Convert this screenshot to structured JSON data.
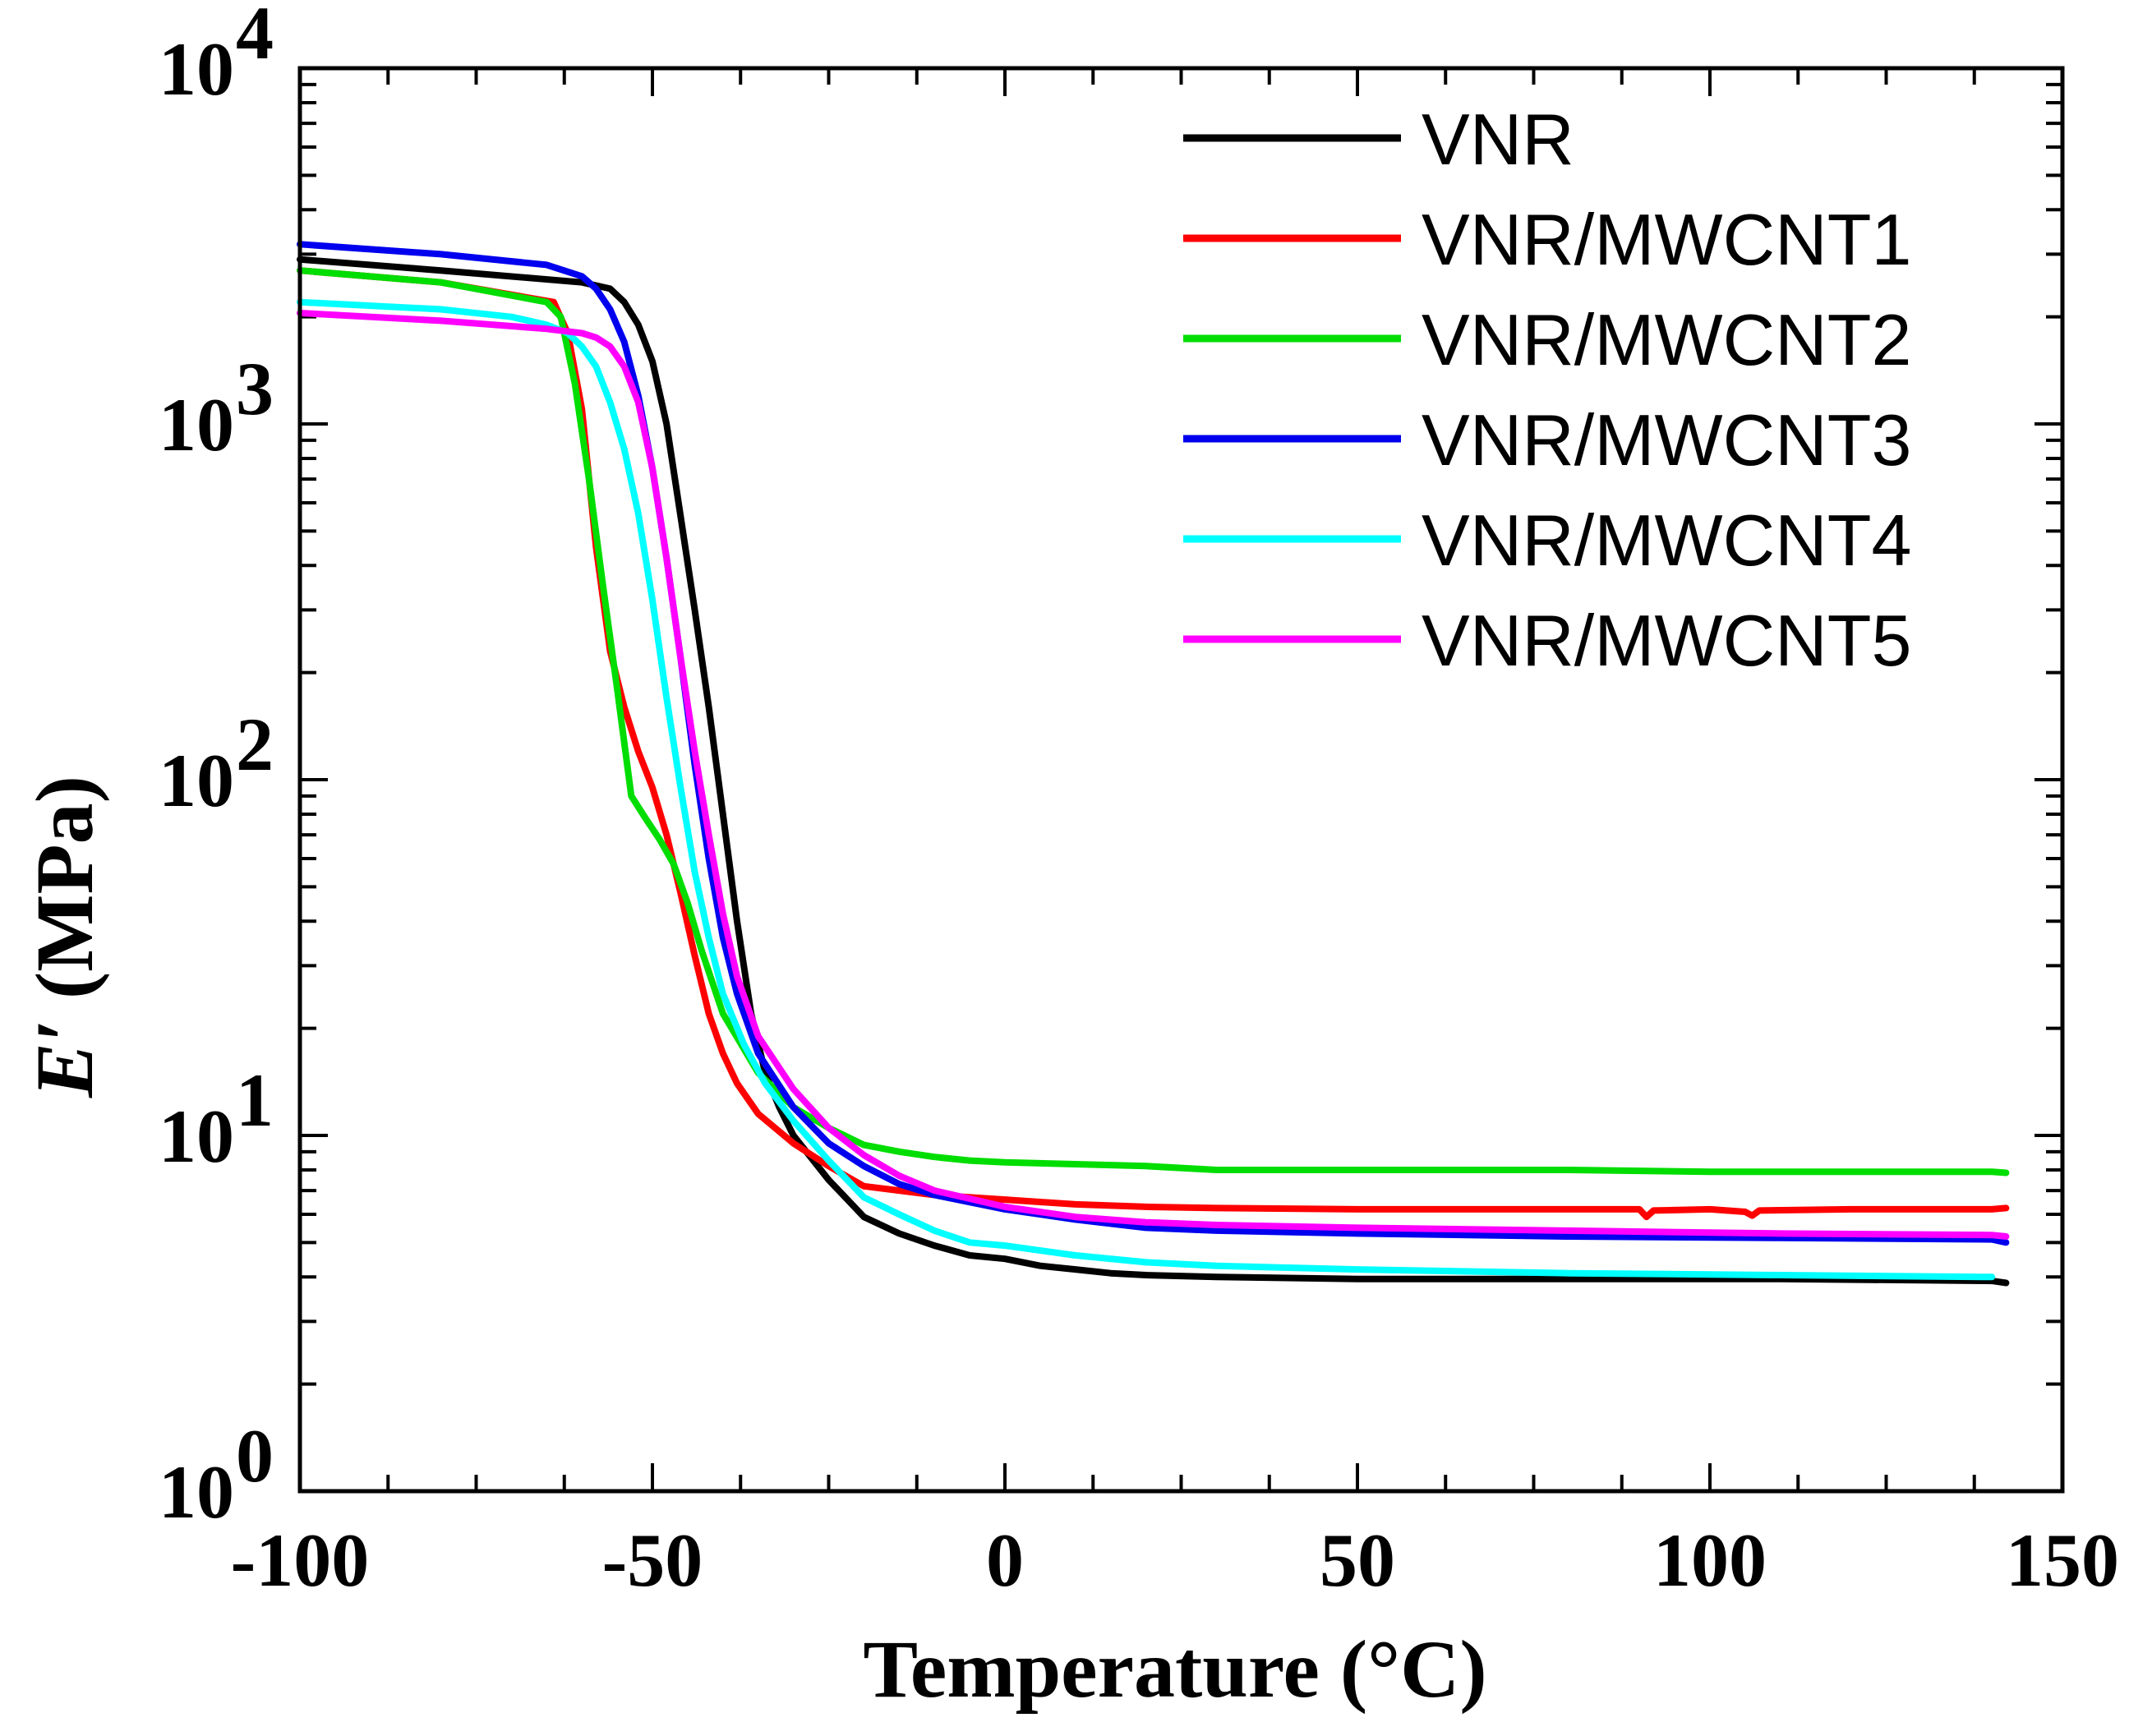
{
  "chart_data": {
    "type": "line",
    "title": "",
    "xlabel": "Temperature (°C)",
    "ylabel": "E′ (MPa)",
    "ylabel_parts": {
      "symbol": "E′",
      "unit": " (MPa)"
    },
    "yscale": "log",
    "xlim": [
      -100,
      150
    ],
    "ylim": [
      1,
      10000
    ],
    "x_major_ticks": [
      -100,
      -50,
      0,
      50,
      100,
      150
    ],
    "x_tick_labels": [
      "-100",
      "-50",
      "0",
      "50",
      "100",
      "150"
    ],
    "y_major_ticks": [
      {
        "value": 1,
        "base": "10",
        "exp": "0"
      },
      {
        "value": 10,
        "base": "10",
        "exp": "1"
      },
      {
        "value": 100,
        "base": "10",
        "exp": "2"
      },
      {
        "value": 1000,
        "base": "10",
        "exp": "3"
      },
      {
        "value": 10000,
        "base": "10",
        "exp": "4"
      }
    ],
    "legend_position": "top-right",
    "series": [
      {
        "name": "VNR",
        "color": "#000000",
        "x": [
          -100,
          -80,
          -60,
          -56,
          -54,
          -52,
          -50,
          -48,
          -46,
          -44,
          -42,
          -40,
          -38,
          -36,
          -34,
          -32,
          -30,
          -25,
          -20,
          -15,
          -10,
          -5,
          0,
          5,
          10,
          15,
          20,
          30,
          50,
          80,
          110,
          140,
          142
        ],
        "y": [
          2900,
          2700,
          2500,
          2400,
          2200,
          1900,
          1500,
          1000,
          550,
          300,
          160,
          80,
          40,
          22,
          15,
          12,
          10,
          7.5,
          5.9,
          5.3,
          4.9,
          4.6,
          4.5,
          4.3,
          4.2,
          4.1,
          4.05,
          4.0,
          3.95,
          3.95,
          3.95,
          3.9,
          3.85
        ]
      },
      {
        "name": "VNR/MWCNT1",
        "color": "#ff0000",
        "x": [
          -100,
          -80,
          -64,
          -62,
          -60,
          -58,
          -56,
          -54,
          -52,
          -50,
          -48,
          -46,
          -44,
          -42,
          -40,
          -38,
          -35,
          -30,
          -25,
          -20,
          -15,
          -10,
          0,
          10,
          20,
          30,
          50,
          80,
          90,
          91,
          92,
          100,
          105,
          106,
          107,
          120,
          140,
          142
        ],
        "y": [
          2700,
          2500,
          2200,
          1800,
          1100,
          450,
          230,
          160,
          120,
          95,
          70,
          48,
          32,
          22,
          17,
          14,
          11.5,
          9.5,
          8.2,
          7.2,
          7.0,
          6.8,
          6.6,
          6.4,
          6.3,
          6.25,
          6.2,
          6.2,
          6.2,
          5.9,
          6.15,
          6.2,
          6.1,
          5.95,
          6.15,
          6.2,
          6.2,
          6.25
        ]
      },
      {
        "name": "VNR/MWCNT2",
        "color": "#00dd00",
        "x": [
          -100,
          -80,
          -65,
          -63,
          -61,
          -59,
          -57,
          -55,
          -53,
          -51,
          -49,
          -47,
          -45,
          -43,
          -40,
          -35,
          -30,
          -25,
          -20,
          -15,
          -10,
          -5,
          0,
          10,
          20,
          30,
          50,
          80,
          100,
          120,
          140,
          142
        ],
        "y": [
          2700,
          2500,
          2200,
          2000,
          1300,
          700,
          350,
          180,
          90,
          78,
          68,
          58,
          45,
          33,
          22,
          15,
          12,
          10.5,
          9.4,
          9.0,
          8.7,
          8.5,
          8.4,
          8.3,
          8.2,
          8.0,
          8.0,
          8.0,
          7.9,
          7.9,
          7.9,
          7.85
        ]
      },
      {
        "name": "VNR/MWCNT3",
        "color": "#0000ee",
        "x": [
          -100,
          -80,
          -65,
          -60,
          -58,
          -56,
          -54,
          -52,
          -50,
          -48,
          -46,
          -44,
          -42,
          -40,
          -38,
          -35,
          -30,
          -25,
          -20,
          -15,
          -10,
          0,
          10,
          20,
          30,
          50,
          80,
          110,
          140,
          142
        ],
        "y": [
          3200,
          3000,
          2800,
          2600,
          2400,
          2100,
          1700,
          1200,
          750,
          420,
          220,
          110,
          60,
          36,
          25,
          17,
          12,
          9.5,
          8.2,
          7.3,
          6.8,
          6.2,
          5.8,
          5.5,
          5.4,
          5.3,
          5.2,
          5.15,
          5.1,
          5.0
        ]
      },
      {
        "name": "VNR/MWCNT4",
        "color": "#00ffff",
        "x": [
          -100,
          -80,
          -70,
          -65,
          -62,
          -60,
          -58,
          -56,
          -54,
          -52,
          -50,
          -48,
          -46,
          -44,
          -42,
          -40,
          -37,
          -34,
          -30,
          -25,
          -20,
          -15,
          -10,
          -5,
          0,
          10,
          20,
          30,
          50,
          80,
          110,
          140
        ],
        "y": [
          2200,
          2100,
          2000,
          1900,
          1800,
          1650,
          1450,
          1150,
          850,
          560,
          320,
          170,
          95,
          55,
          36,
          25,
          18,
          14,
          11,
          8.5,
          6.7,
          6.0,
          5.4,
          5.0,
          4.9,
          4.6,
          4.4,
          4.3,
          4.2,
          4.1,
          4.05,
          4.0
        ]
      },
      {
        "name": "VNR/MWCNT5",
        "color": "#ff00ff",
        "x": [
          -100,
          -80,
          -65,
          -60,
          -58,
          -56,
          -54,
          -52,
          -50,
          -48,
          -46,
          -44,
          -42,
          -40,
          -38,
          -35,
          -30,
          -25,
          -20,
          -15,
          -10,
          0,
          10,
          20,
          30,
          50,
          80,
          110,
          140,
          142
        ],
        "y": [
          2050,
          1950,
          1850,
          1800,
          1750,
          1650,
          1450,
          1150,
          750,
          420,
          220,
          120,
          70,
          42,
          28,
          19,
          13.5,
          10.5,
          8.8,
          7.7,
          7.0,
          6.3,
          5.9,
          5.7,
          5.6,
          5.5,
          5.4,
          5.3,
          5.25,
          5.2
        ]
      }
    ]
  }
}
